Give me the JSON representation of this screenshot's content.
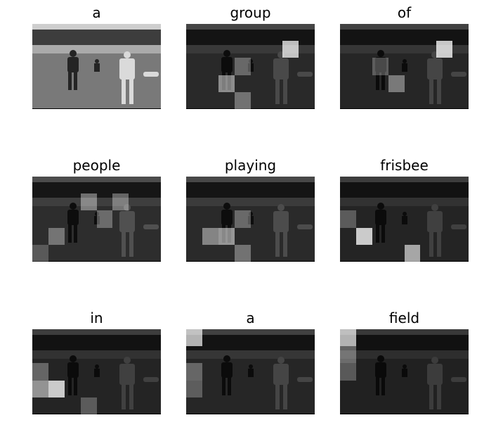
{
  "panels": [
    {
      "word": "a",
      "brightness": 0.95,
      "hot": []
    },
    {
      "word": "group",
      "brightness": 0.32,
      "hot": [
        [
          1,
          6,
          0.85
        ],
        [
          3,
          2,
          0.55
        ],
        [
          2,
          3,
          0.35
        ],
        [
          4,
          3,
          0.4
        ]
      ]
    },
    {
      "word": "of",
      "brightness": 0.3,
      "hot": [
        [
          1,
          6,
          0.9
        ],
        [
          3,
          3,
          0.45
        ],
        [
          2,
          2,
          0.3
        ]
      ]
    },
    {
      "word": "people",
      "brightness": 0.35,
      "hot": [
        [
          1,
          3,
          0.45
        ],
        [
          1,
          5,
          0.4
        ],
        [
          3,
          1,
          0.4
        ],
        [
          2,
          4,
          0.35
        ],
        [
          4,
          0,
          0.25
        ]
      ]
    },
    {
      "word": "playing",
      "brightness": 0.33,
      "hot": [
        [
          3,
          2,
          0.6
        ],
        [
          3,
          1,
          0.5
        ],
        [
          4,
          3,
          0.4
        ],
        [
          2,
          3,
          0.35
        ]
      ]
    },
    {
      "word": "frisbee",
      "brightness": 0.28,
      "hot": [
        [
          3,
          1,
          0.9
        ],
        [
          4,
          4,
          0.7
        ],
        [
          2,
          0,
          0.3
        ]
      ]
    },
    {
      "word": "in",
      "brightness": 0.28,
      "hot": [
        [
          3,
          1,
          0.9
        ],
        [
          3,
          0,
          0.6
        ],
        [
          2,
          0,
          0.35
        ],
        [
          4,
          3,
          0.3
        ]
      ]
    },
    {
      "word": "a",
      "brightness": 0.3,
      "hot": [
        [
          0,
          0,
          0.8
        ],
        [
          2,
          0,
          0.35
        ],
        [
          3,
          0,
          0.3
        ]
      ]
    },
    {
      "word": "field",
      "brightness": 0.26,
      "hot": [
        [
          0,
          0,
          0.8
        ],
        [
          1,
          0,
          0.4
        ],
        [
          2,
          0,
          0.3
        ]
      ]
    }
  ]
}
